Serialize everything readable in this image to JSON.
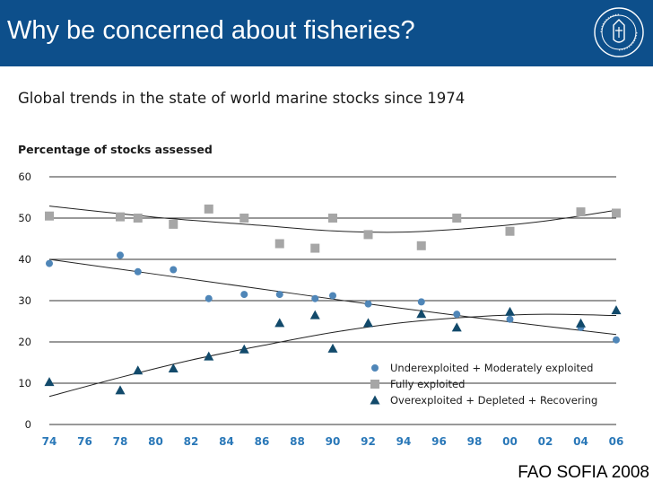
{
  "header": {
    "title": "Why be concerned about fisheries?",
    "background_color": "#0d4f8b",
    "seal_icon": "university-of-bergen-seal-icon"
  },
  "source_label": "FAO SOFIA 2008",
  "chart_data": {
    "type": "scatter",
    "title": "Global trends in the state of world marine stocks since 1974",
    "subtitle": "Percentage of stocks assessed",
    "xlabel": "",
    "ylabel": "",
    "xlim": [
      1974,
      2006
    ],
    "ylim": [
      0,
      60
    ],
    "yticks": [
      0,
      10,
      20,
      30,
      40,
      50,
      60
    ],
    "xticks": [
      1974,
      1976,
      1978,
      1980,
      1982,
      1984,
      1986,
      1988,
      1990,
      1992,
      1994,
      1996,
      1998,
      2000,
      2002,
      2004,
      2006
    ],
    "xtick_labels": [
      "74",
      "76",
      "78",
      "80",
      "82",
      "84",
      "86",
      "88",
      "90",
      "92",
      "94",
      "96",
      "98",
      "00",
      "02",
      "04",
      "06"
    ],
    "grid": "horizontal",
    "legend_position": "bottom-right",
    "series": [
      {
        "name": "Underexploited + Moderately exploited",
        "marker": "circle",
        "color": "#4f86b8",
        "x": [
          1974,
          1978,
          1979,
          1981,
          1983,
          1985,
          1987,
          1989,
          1990,
          1992,
          1995,
          1997,
          2000,
          2004,
          2006
        ],
        "y": [
          39,
          41,
          37,
          37.5,
          30.5,
          31.5,
          31.5,
          30.5,
          31.2,
          29.2,
          29.7,
          26.7,
          25.5,
          23.5,
          20.5
        ],
        "trend": [
          [
            1974,
            40
          ],
          [
            1980,
            36.4
          ],
          [
            1986,
            32.8
          ],
          [
            1992,
            29.2
          ],
          [
            1998,
            25.9
          ],
          [
            2002,
            23.8
          ],
          [
            2006,
            21.8
          ]
        ]
      },
      {
        "name": "Fully exploited",
        "marker": "square",
        "color": "#a6a6a6",
        "x": [
          1974,
          1978,
          1979,
          1981,
          1983,
          1985,
          1987,
          1989,
          1990,
          1992,
          1995,
          1997,
          2000,
          2004,
          2006
        ],
        "y": [
          50.5,
          50.3,
          50,
          48.5,
          52.2,
          50,
          43.8,
          42.7,
          50,
          46,
          43.3,
          50,
          46.8,
          51.5,
          51.2
        ],
        "trend": [
          [
            1974,
            52.9
          ],
          [
            1980,
            50.2
          ],
          [
            1986,
            48.2
          ],
          [
            1990,
            46.9
          ],
          [
            1994,
            46.6
          ],
          [
            1998,
            47.6
          ],
          [
            2002,
            49.3
          ],
          [
            2006,
            51.9
          ]
        ]
      },
      {
        "name": "Overexploited + Depleted + Recovering",
        "marker": "triangle",
        "color": "#124a6b",
        "x": [
          1974,
          1978,
          1979,
          1981,
          1983,
          1985,
          1987,
          1989,
          1990,
          1992,
          1995,
          1997,
          2000,
          2004,
          2006
        ],
        "y": [
          10.3,
          8.3,
          13.1,
          13.6,
          16.5,
          18.2,
          24.6,
          26.5,
          18.4,
          24.6,
          26.8,
          23.5,
          27.3,
          24.5,
          27.7
        ],
        "trend": [
          [
            1974,
            6.8
          ],
          [
            1978,
            11.4
          ],
          [
            1982,
            15.6
          ],
          [
            1986,
            19.1
          ],
          [
            1990,
            22.3
          ],
          [
            1994,
            24.7
          ],
          [
            1998,
            26.1
          ],
          [
            2002,
            26.7
          ],
          [
            2006,
            26.4
          ]
        ]
      }
    ]
  }
}
